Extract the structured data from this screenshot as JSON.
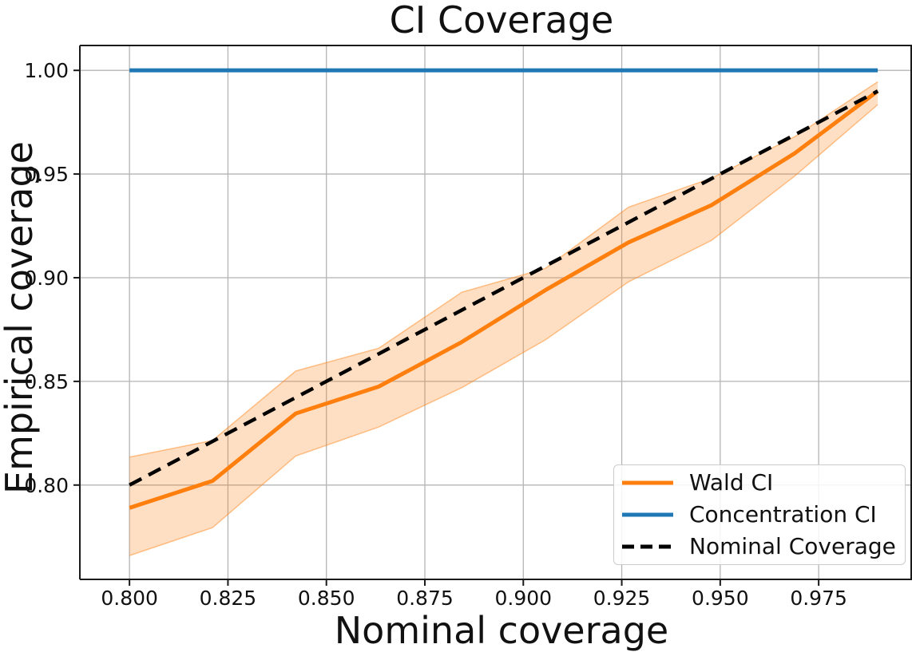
{
  "chart_data": {
    "type": "line",
    "title": "CI Coverage",
    "xlabel": "Nominal coverage",
    "ylabel": "Empirical coverage",
    "grid": true,
    "grid_color": "#b4b4b4",
    "axis_color": "#1a1a1a",
    "xlim": [
      0.7874,
      0.9987
    ],
    "ylim": [
      0.7545,
      1.012
    ],
    "x_ticks": {
      "values": [
        0.8,
        0.825,
        0.85,
        0.875,
        0.9,
        0.925,
        0.95,
        0.975
      ],
      "labels": [
        "0.800",
        "0.825",
        "0.850",
        "0.875",
        "0.900",
        "0.925",
        "0.950",
        "0.975"
      ]
    },
    "y_ticks": {
      "values": [
        0.8,
        0.85,
        0.9,
        0.95,
        1.0
      ],
      "labels": [
        "0.80",
        "0.85",
        "0.90",
        "0.95",
        "1.00"
      ]
    },
    "x": [
      0.8,
      0.8211,
      0.8422,
      0.8633,
      0.8844,
      0.9056,
      0.9267,
      0.9478,
      0.9689,
      0.99
    ],
    "series": [
      {
        "name": "Wald CI",
        "color": "#ff7f0e",
        "style": "solid",
        "values": [
          0.789,
          0.802,
          0.8345,
          0.8475,
          0.869,
          0.894,
          0.917,
          0.935,
          0.96,
          0.99
        ],
        "band": {
          "lower": [
            0.766,
            0.7795,
            0.814,
            0.828,
            0.847,
            0.87,
            0.898,
            0.918,
            0.949,
            0.9835
          ],
          "upper": [
            0.8135,
            0.8215,
            0.855,
            0.866,
            0.893,
            0.9045,
            0.934,
            0.948,
            0.968,
            0.9945
          ],
          "fill_color": "rgba(255,127,14,0.25)",
          "edge_color": "rgba(255,127,14,0.45)"
        }
      },
      {
        "name": "Concentration CI",
        "color": "#1f77b4",
        "style": "solid",
        "values": [
          1.0,
          1.0,
          1.0,
          1.0,
          1.0,
          1.0,
          1.0,
          1.0,
          1.0,
          1.0
        ]
      },
      {
        "name": "Nominal Coverage",
        "color": "#000000",
        "style": "dashed",
        "values": [
          0.8,
          0.8211,
          0.8422,
          0.8633,
          0.8844,
          0.9056,
          0.9267,
          0.9478,
          0.9689,
          0.99
        ]
      }
    ],
    "legend": {
      "position": "lower right"
    }
  }
}
